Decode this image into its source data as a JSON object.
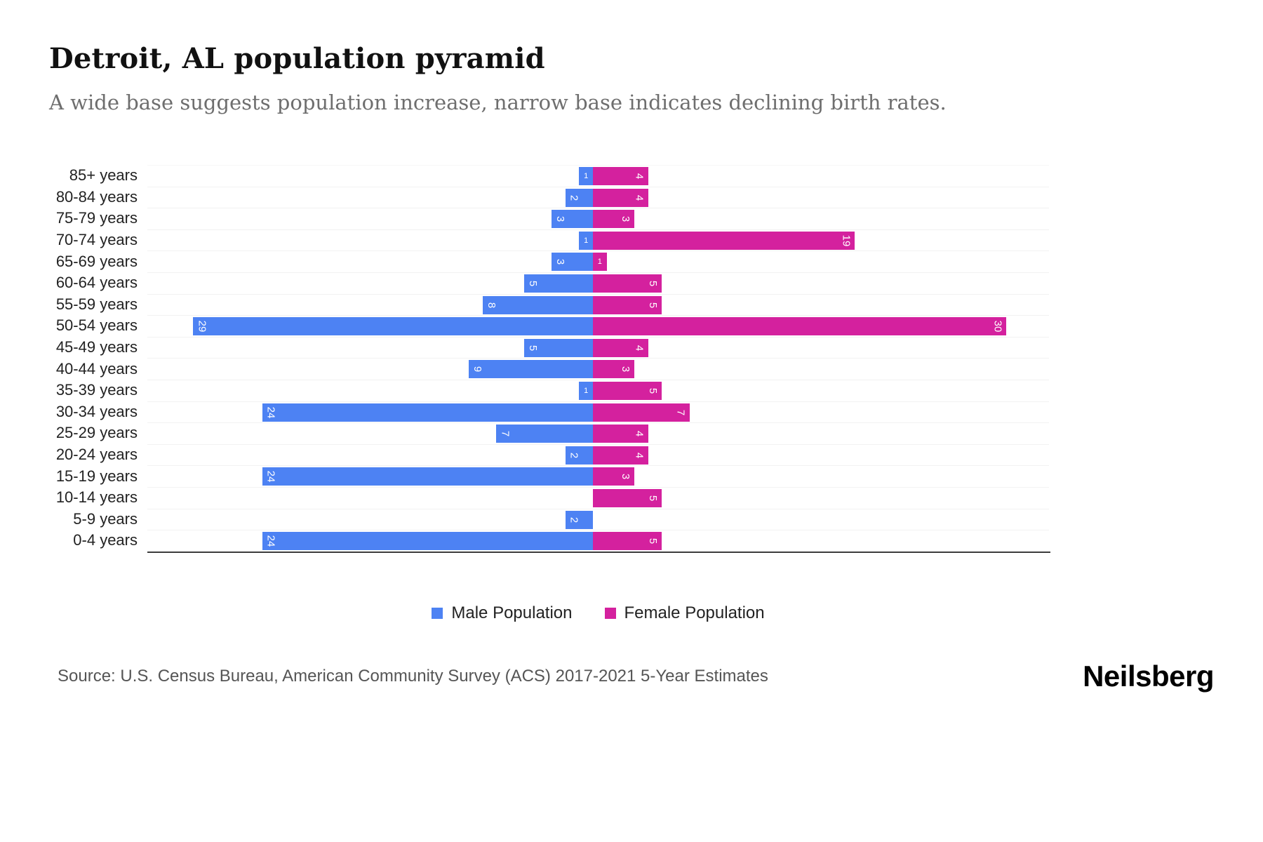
{
  "header": {
    "title": "Detroit, AL population pyramid",
    "subtitle": "A wide base suggests population increase, narrow base indicates declining birth rates."
  },
  "chart_data": {
    "type": "bar",
    "variant": "population-pyramid",
    "orientation": "horizontal",
    "categories": [
      "85+ years",
      "80-84 years",
      "75-79 years",
      "70-74 years",
      "65-69 years",
      "60-64 years",
      "55-59 years",
      "50-54 years",
      "45-49 years",
      "40-44 years",
      "35-39 years",
      "30-34 years",
      "25-29 years",
      "20-24 years",
      "15-19 years",
      "10-14 years",
      "5-9 years",
      "0-4 years"
    ],
    "series": [
      {
        "name": "Male Population",
        "color": "#4d82f3",
        "side": "left",
        "values": [
          1,
          2,
          3,
          1,
          3,
          5,
          8,
          29,
          5,
          9,
          1,
          24,
          7,
          2,
          24,
          0,
          2,
          24
        ]
      },
      {
        "name": "Female Population",
        "color": "#d4219e",
        "side": "right",
        "values": [
          4,
          4,
          3,
          19,
          1,
          5,
          5,
          30,
          4,
          3,
          5,
          7,
          4,
          4,
          3,
          5,
          0,
          5
        ]
      }
    ],
    "value_axis_max_per_side": 32,
    "grid": "horizontal-light",
    "legend_position": "bottom-center",
    "bar_value_labels": "inside-outer-end"
  },
  "footer": {
    "source": "Source: U.S. Census Bureau, American Community Survey (ACS) 2017-2021 5-Year Estimates",
    "brand": "Neilsberg"
  }
}
